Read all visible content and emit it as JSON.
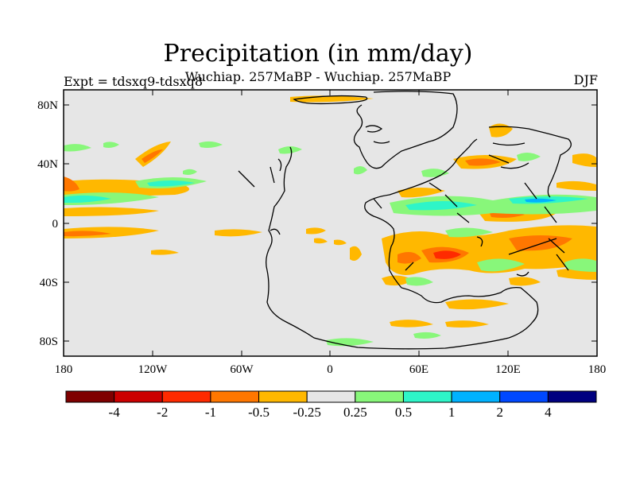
{
  "header": {
    "title": "Precipitation (in mm/day)",
    "subtitle": "Wuchiap. 257MaBP - Wuchiap. 257MaBP",
    "left_label": "Expt = tdsxq9-tdsxq8",
    "right_label": "DJF"
  },
  "map": {
    "projection": "cylindrical equidistant",
    "lon_range": [
      -180,
      180
    ],
    "lat_range": [
      -90,
      90
    ],
    "x_ticks": [
      "180",
      "120W",
      "60W",
      "0",
      "60E",
      "120E",
      "180"
    ],
    "y_ticks": [
      "80N",
      "40N",
      "0",
      "40S",
      "80S"
    ],
    "background_color": "#e6e6e6"
  },
  "colorbar": {
    "colors": [
      "#7f0000",
      "#cc0000",
      "#ff2a00",
      "#ff7700",
      "#ffb800",
      "#e6e6e6",
      "#88f77a",
      "#2ef5c8",
      "#00b2ff",
      "#0048ff",
      "#000080"
    ],
    "labels": [
      "-4",
      "-2",
      "-1",
      "-0.5",
      "-0.25",
      "0.25",
      "0.5",
      "1",
      "2",
      "4"
    ]
  }
}
